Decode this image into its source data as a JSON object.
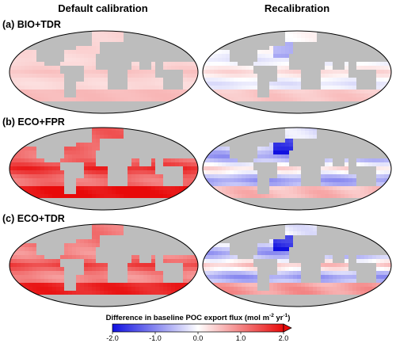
{
  "columns": [
    "Default calibration",
    "Recalibration"
  ],
  "rows": [
    "(a) BIO+TDR",
    "(b) ECO+FPR",
    "(c) ECO+TDR"
  ],
  "colorbar": {
    "title_main": "Difference in baseline POC export flux (mol m",
    "sup1": "-2",
    "mid": " yr",
    "sup2": "-1",
    "tail": ")",
    "ticks": [
      "-2.0",
      "-1.0",
      "0.0",
      "1.0",
      "2.0"
    ],
    "range": [
      -2.0,
      2.0
    ],
    "colors": {
      "low": "#1010e0",
      "mid": "#ffffff",
      "high": "#e80a0a",
      "land": "#bdbdbd"
    }
  },
  "panels": [
    {
      "row": 0,
      "col": 0,
      "bias": 0.35,
      "amp": 0.15
    },
    {
      "row": 0,
      "col": 1,
      "bias": 0.05,
      "amp": 0.3
    },
    {
      "row": 1,
      "col": 0,
      "bias": 1.3,
      "amp": 0.5
    },
    {
      "row": 1,
      "col": 1,
      "bias": -0.25,
      "amp": 0.6
    },
    {
      "row": 2,
      "col": 0,
      "bias": 1.1,
      "amp": 0.5
    },
    {
      "row": 2,
      "col": 1,
      "bias": -0.15,
      "amp": 0.7
    }
  ]
}
